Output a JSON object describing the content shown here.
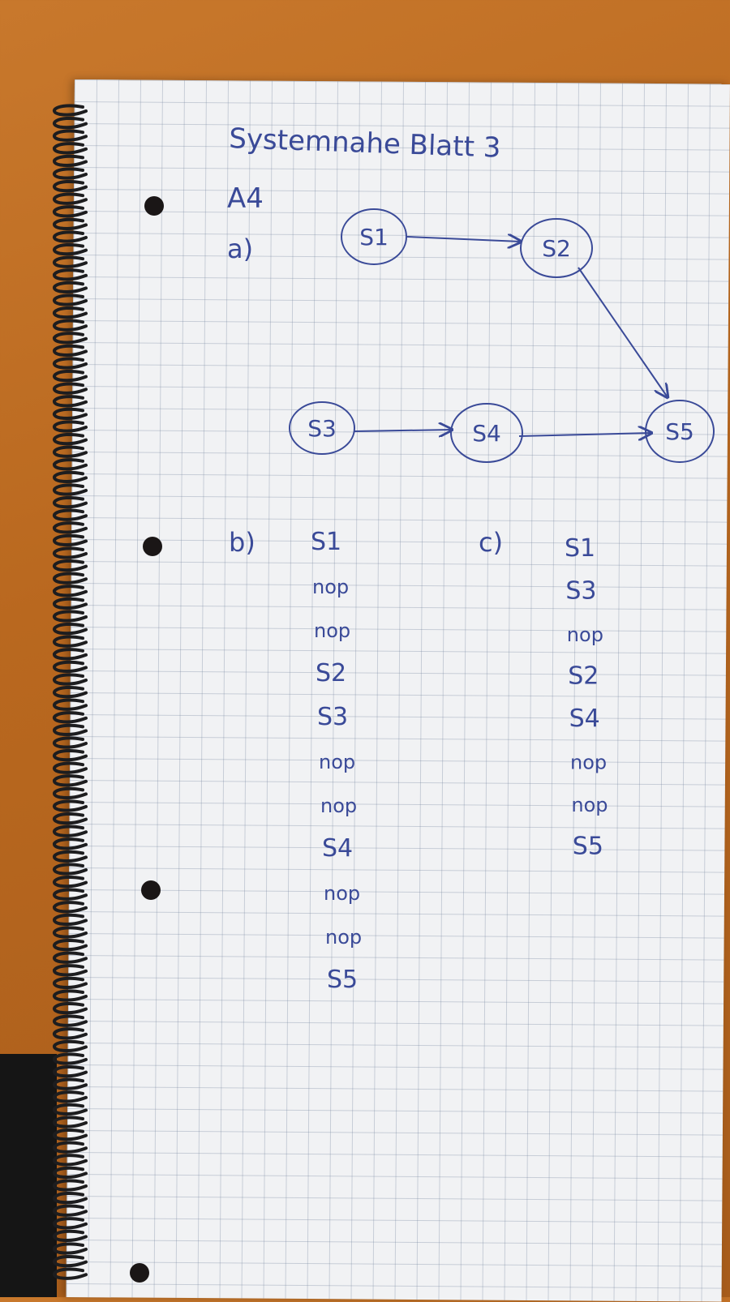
{
  "title": "Systemnahe Blatt 3",
  "exercise": "A4",
  "part_a": {
    "label": "a)",
    "nodes": [
      "S1",
      "S2",
      "S3",
      "S4",
      "S5"
    ]
  },
  "part_b": {
    "label": "b)",
    "sequence": [
      "S1",
      "nop",
      "nop",
      "S2",
      "S3",
      "nop",
      "nop",
      "S4",
      "nop",
      "nop",
      "S5"
    ]
  },
  "part_c": {
    "label": "c)",
    "sequence": [
      "S1",
      "S3",
      "nop",
      "S2",
      "S4",
      "nop",
      "nop",
      "S5"
    ]
  },
  "colors": {
    "ink": "#3a4a98",
    "paper": "#f1f2f4",
    "desk": "#b9681f"
  }
}
